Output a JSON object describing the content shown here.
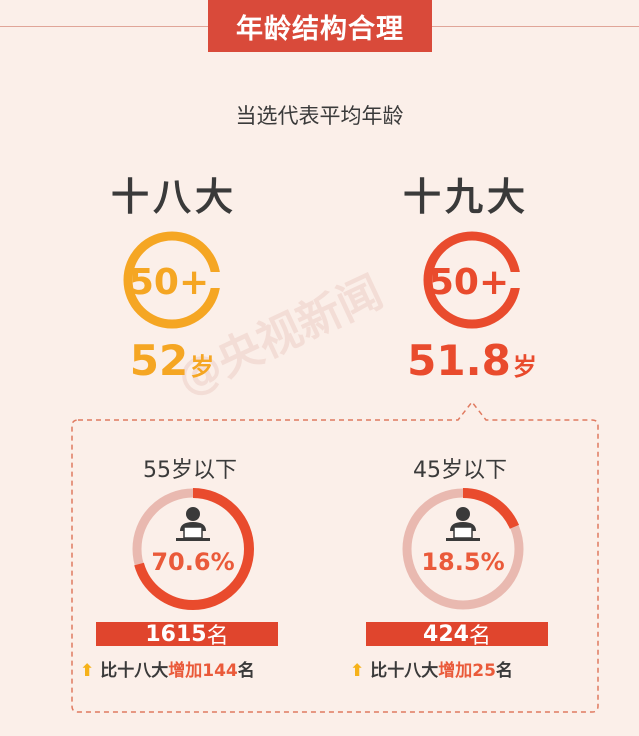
{
  "header": {
    "title": "年龄结构合理"
  },
  "subtitle": "当选代表平均年龄",
  "left": {
    "congress": "十八大",
    "badge": "50+",
    "age_value": "52",
    "age_unit": "岁",
    "group_label": "55岁以下",
    "percent_text": "70.6%",
    "percent": 70.6,
    "count_value": "1615",
    "count_unit": "名",
    "compare_prefix": "比十八大",
    "compare_verb": "增加",
    "compare_amount": "144",
    "compare_unit": "名",
    "color": "#f5a623"
  },
  "right": {
    "congress": "十九大",
    "badge": "50+",
    "age_value": "51.8",
    "age_unit": "岁",
    "group_label": "45岁以下",
    "percent_text": "18.5%",
    "percent": 18.5,
    "count_value": "424",
    "count_unit": "名",
    "compare_prefix": "比十八大",
    "compare_verb": "增加",
    "compare_amount": "25",
    "compare_unit": "名",
    "color": "#e94b2d"
  },
  "watermark": "@央视新闻",
  "colors": {
    "accent": "#d94a3a",
    "track": "#e9b9b0",
    "arrow": "#f6b21a"
  },
  "icons": {
    "person": "person-at-desk-icon",
    "up": "up-arrow-icon"
  }
}
